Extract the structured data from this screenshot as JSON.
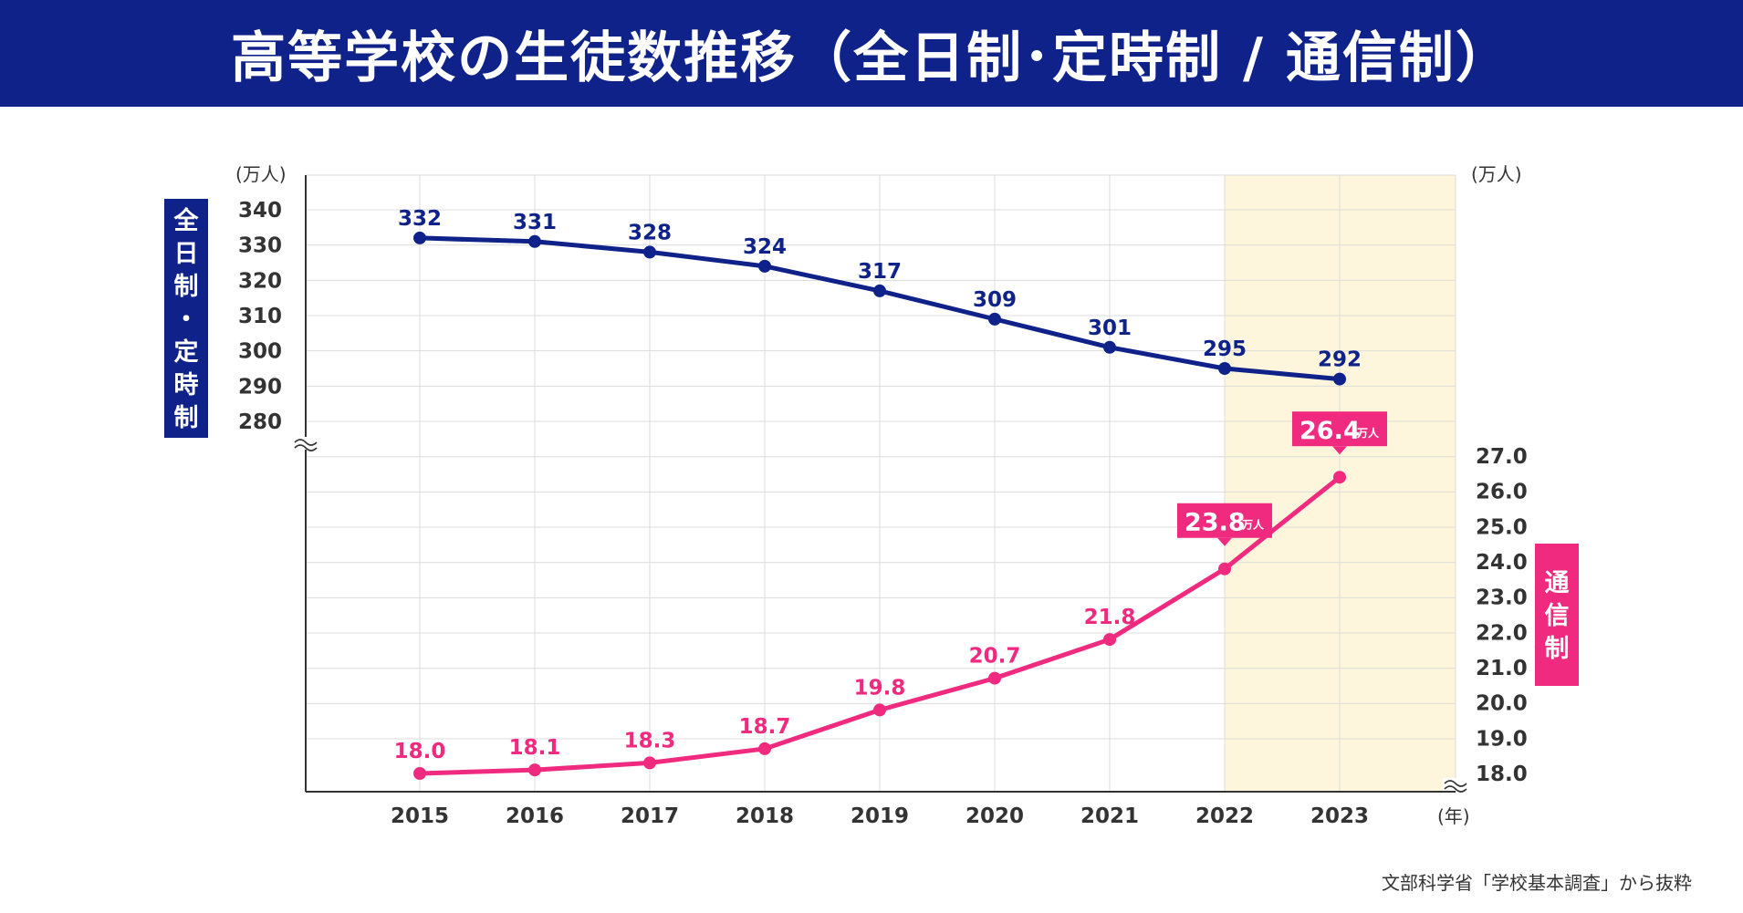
{
  "title": "高等学校の生徒数推移（全日制･定時制 / 通信制）",
  "source": "文部科学省「学校基本調査」から抜粋",
  "colors": {
    "header_bg": "#0f2289",
    "fulltime": "#0f2289",
    "correspondence": "#ef2a7f",
    "highlight": "#fdf6dc",
    "grid": "#dcdcdc",
    "axis": "#333333"
  },
  "chart_data": {
    "type": "line",
    "x": [
      "2015",
      "2016",
      "2017",
      "2018",
      "2019",
      "2020",
      "2021",
      "2022",
      "2023"
    ],
    "x_unit": "(年)",
    "highlight_range": [
      "2022",
      "2023"
    ],
    "grid": true,
    "axis_break": true,
    "series": [
      {
        "name": "全日制・定時制",
        "axis": "left",
        "unit": "(万人)",
        "values": [
          332,
          331,
          328,
          324,
          317,
          309,
          301,
          295,
          292
        ],
        "labels": [
          "332",
          "331",
          "328",
          "324",
          "317",
          "309",
          "301",
          "295",
          "292"
        ],
        "ylim": [
          280,
          340
        ],
        "yticks": [
          "340",
          "330",
          "320",
          "310",
          "300",
          "290",
          "280"
        ]
      },
      {
        "name": "通信制",
        "axis": "right",
        "unit": "(万人)",
        "values": [
          18.0,
          18.1,
          18.3,
          18.7,
          19.8,
          20.7,
          21.8,
          23.8,
          26.4
        ],
        "labels": [
          "18.0",
          "18.1",
          "18.3",
          "18.7",
          "19.8",
          "20.7",
          "21.8",
          "23.8",
          "26.4"
        ],
        "ylim": [
          18.0,
          27.0
        ],
        "yticks": [
          "27.0",
          "26.0",
          "25.0",
          "24.0",
          "23.0",
          "22.0",
          "21.0",
          "20.0",
          "19.0",
          "18.0"
        ],
        "callouts": [
          {
            "index": 7,
            "value": "23.8",
            "unit": "万人"
          },
          {
            "index": 8,
            "value": "26.4",
            "unit": "万人"
          }
        ]
      }
    ]
  }
}
